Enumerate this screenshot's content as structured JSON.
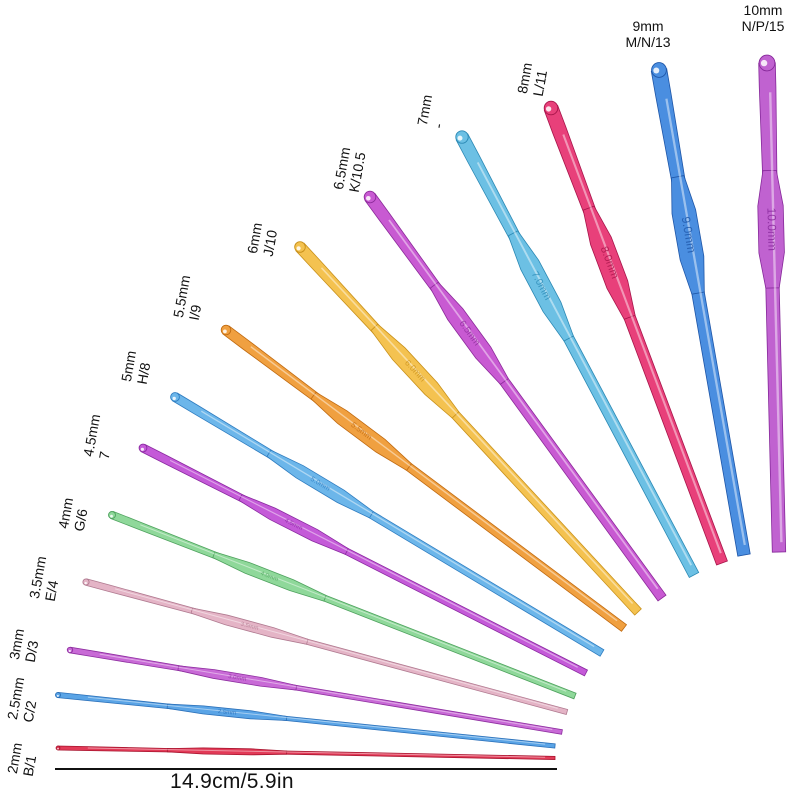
{
  "hooks": [
    {
      "size": "2mm",
      "us": "B/1",
      "color": "#e23a57",
      "shade": "#a8142e",
      "engraving": ""
    },
    {
      "size": "2.5mm",
      "us": "C/2",
      "color": "#5aa4e6",
      "shade": "#2a6fb8",
      "engraving": "2.5mm"
    },
    {
      "size": "3mm",
      "us": "D/3",
      "color": "#c86ad6",
      "shade": "#8e2ea0",
      "engraving": "3.0mm"
    },
    {
      "size": "3.5mm",
      "us": "E/4",
      "color": "#e4b4c6",
      "shade": "#b07a90",
      "engraving": "3.5mm"
    },
    {
      "size": "4mm",
      "us": "G/6",
      "color": "#8fd89a",
      "shade": "#4fa25e",
      "engraving": "4.0mm"
    },
    {
      "size": "4.5mm",
      "us": "7",
      "color": "#c45ad8",
      "shade": "#8a2aa0",
      "engraving": "4.5mm"
    },
    {
      "size": "5mm",
      "us": "H/8",
      "color": "#6cb6ea",
      "shade": "#2e7cc0",
      "engraving": "5.0mm"
    },
    {
      "size": "5.5mm",
      "us": "I/9",
      "color": "#f0a040",
      "shade": "#c06a10",
      "engraving": "5.5mm"
    },
    {
      "size": "6mm",
      "us": "J/10",
      "color": "#f4c250",
      "shade": "#c8901a",
      "engraving": "6.0mm"
    },
    {
      "size": "6.5mm",
      "us": "K/10.5",
      "color": "#c85ad2",
      "shade": "#8c2a9a",
      "engraving": "6.5mm"
    },
    {
      "size": "7mm",
      "us": "-",
      "color": "#6cc0e4",
      "shade": "#2a88b4",
      "engraving": "7.0mm"
    },
    {
      "size": "8mm",
      "us": "L/11",
      "color": "#e8407a",
      "shade": "#a8144a",
      "engraving": "8.0mm"
    },
    {
      "size": "9mm",
      "us": "M/N/13",
      "color": "#4a8ee0",
      "shade": "#1e56a8",
      "engraving": "9.0mm"
    },
    {
      "size": "10mm",
      "us": "N/P/15",
      "color": "#c062d0",
      "shade": "#86289a",
      "engraving": "10.0mm"
    }
  ],
  "measurement": "14.9cm/5.9in"
}
